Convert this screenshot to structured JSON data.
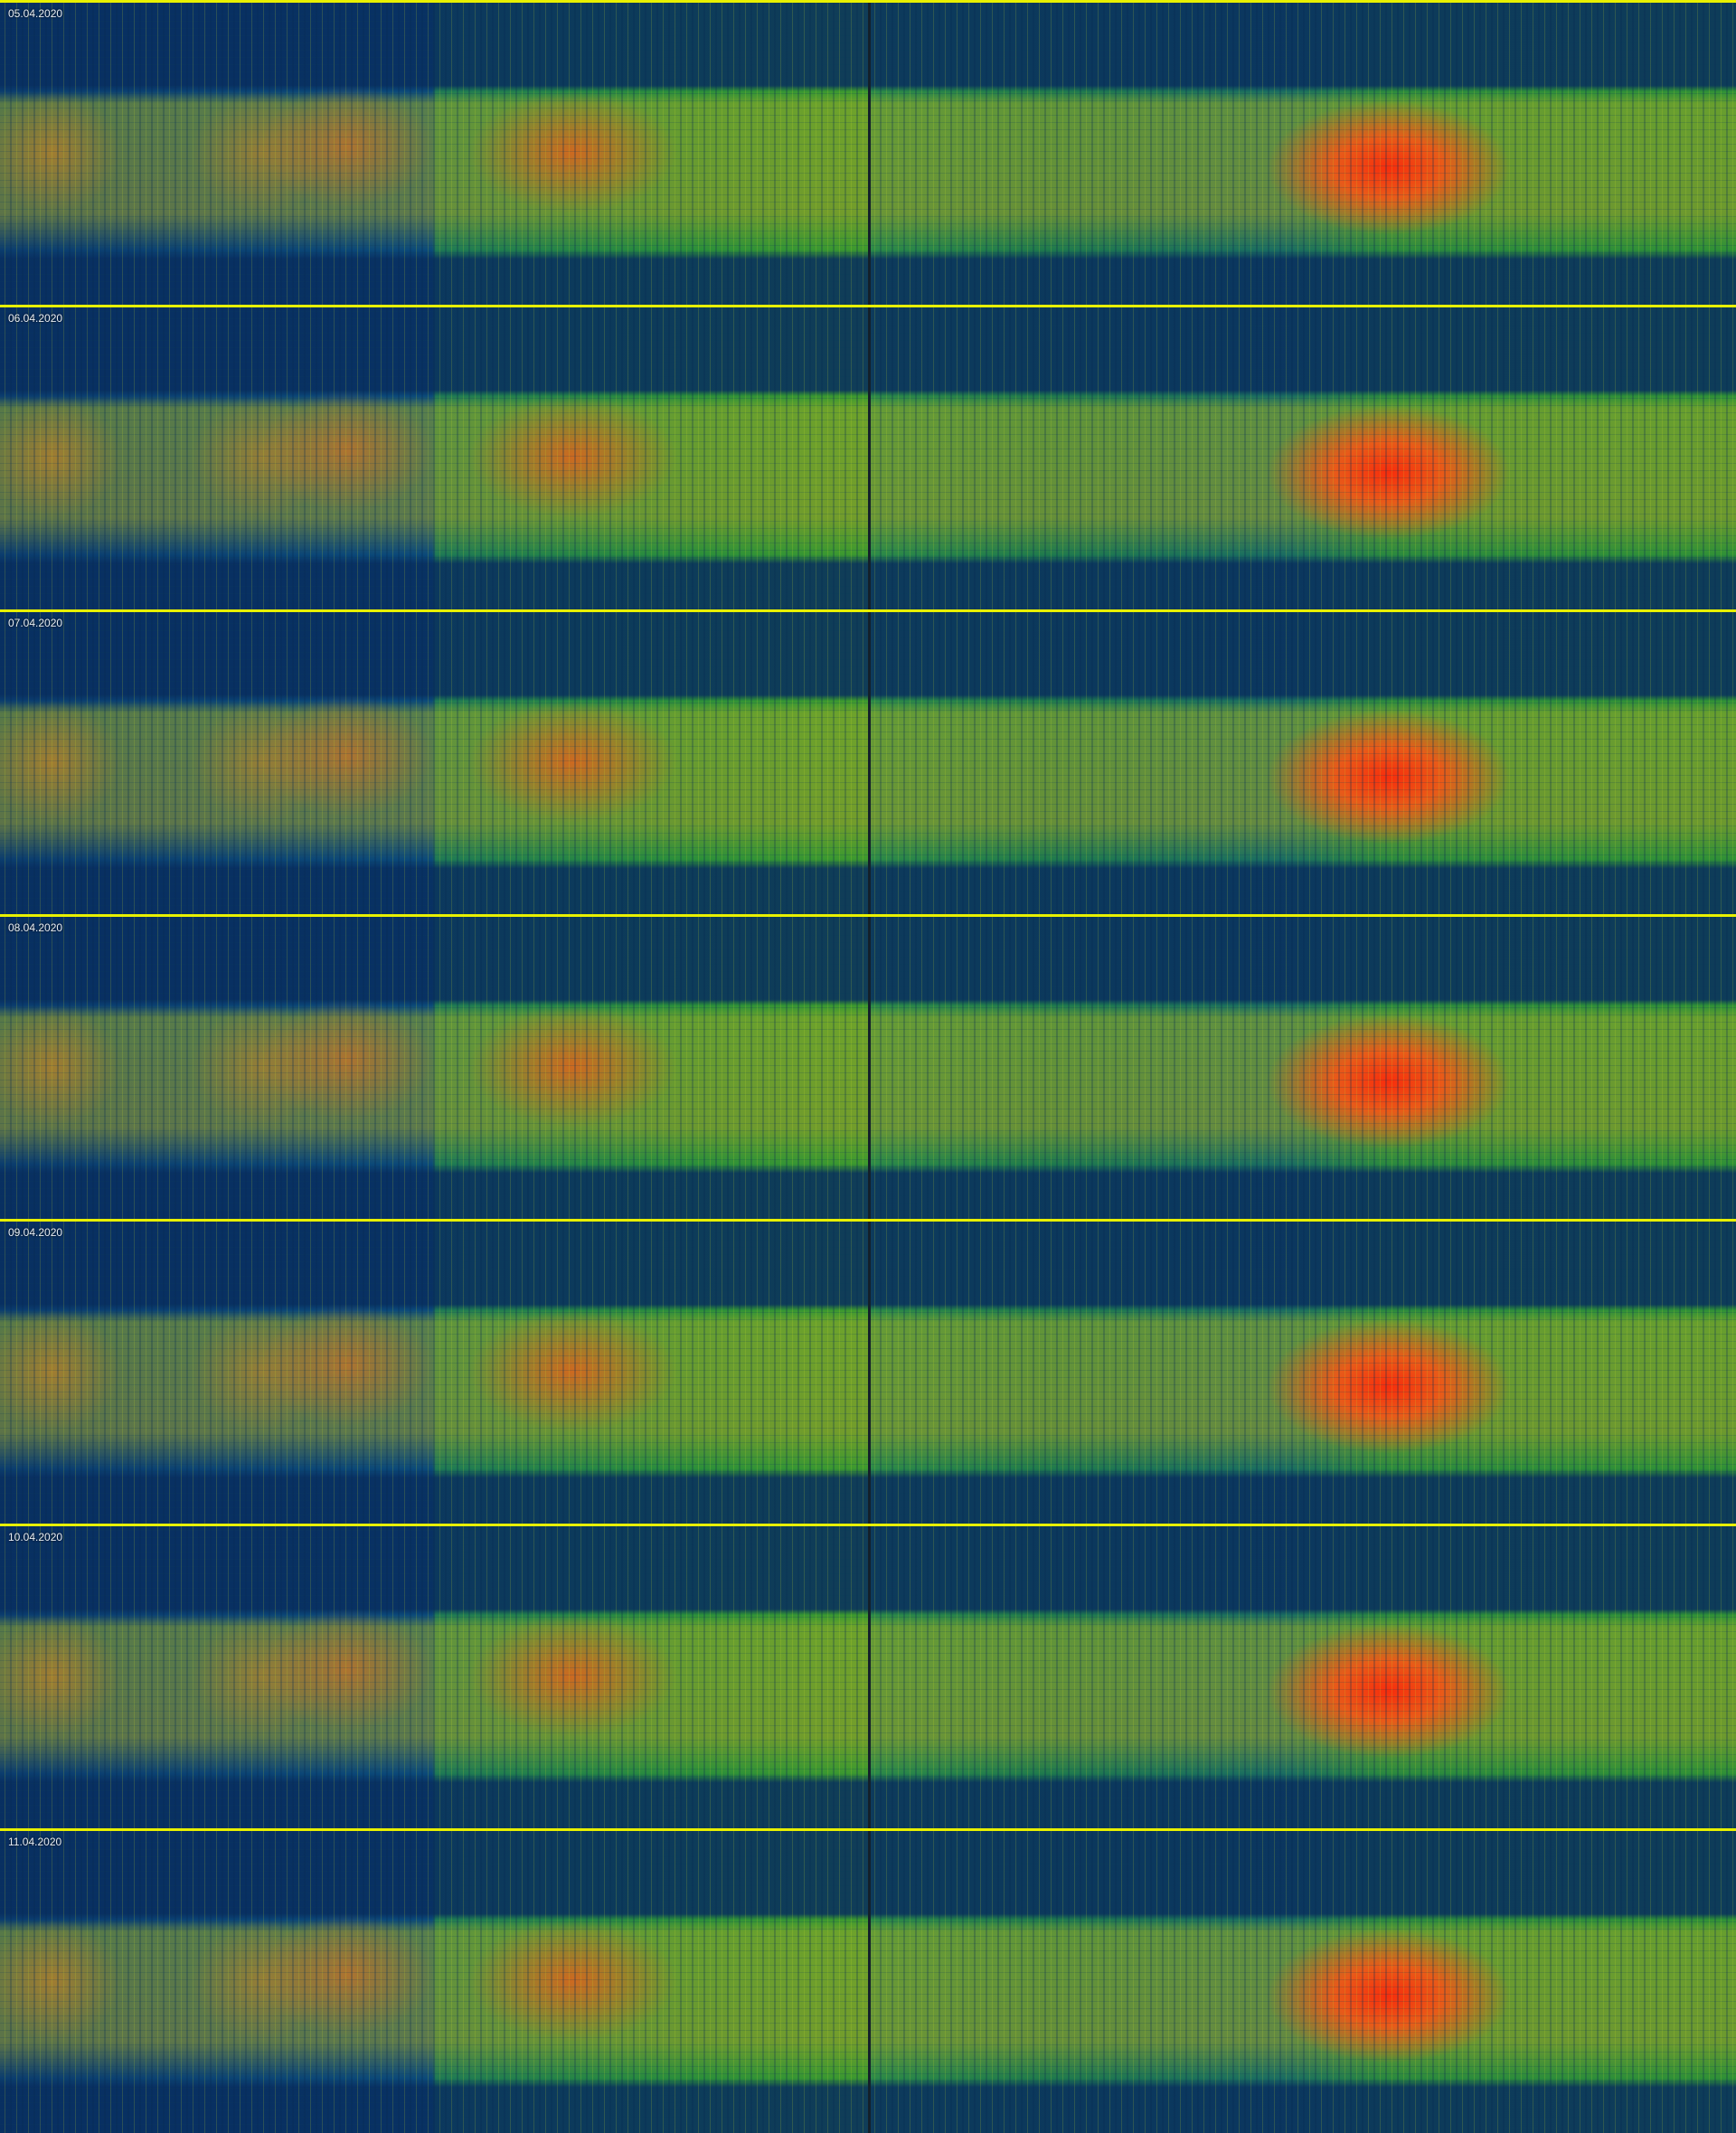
{
  "panels": [
    {
      "date": "05.04.2020"
    },
    {
      "date": "06.04.2020"
    },
    {
      "date": "07.04.2020"
    },
    {
      "date": "08.04.2020"
    },
    {
      "date": "09.04.2020"
    },
    {
      "date": "10.04.2020"
    },
    {
      "date": "11.04.2020"
    }
  ],
  "colors": {
    "separator": "#e8f000",
    "divider": "#14202a",
    "low": "#0b3d6e",
    "mid": "#2a8f3a",
    "high": "#ff2a0a"
  }
}
